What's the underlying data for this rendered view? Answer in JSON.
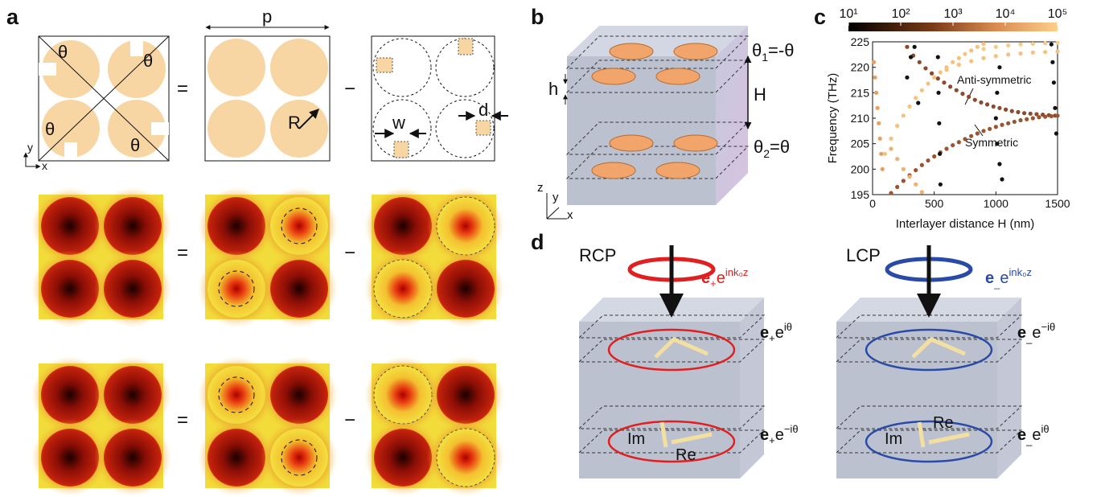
{
  "panel_a": {
    "label": "a",
    "top_row": {
      "theta_labels": [
        "θ",
        "θ",
        "θ",
        "θ"
      ],
      "axis_y": "y",
      "axis_x": "x",
      "equals": "=",
      "period": "p",
      "radius": "R",
      "minus": "−",
      "offset": "d",
      "width": "w"
    },
    "field_rows": [
      {
        "equals": "=",
        "minus": "−"
      },
      {
        "equals": "=",
        "minus": "−"
      }
    ]
  },
  "panel_b": {
    "label": "b",
    "thickness": "h",
    "theta1": {
      "symbol": "θ",
      "sub": "1",
      "rest": "=-θ"
    },
    "distance": "H",
    "theta2": {
      "symbol": "θ",
      "sub": "2",
      "rest": "=θ"
    },
    "axes": [
      "z",
      "y",
      "x"
    ]
  },
  "panel_c": {
    "label": "c",
    "type": "scatter",
    "xlabel": "Interlayer distance H (nm)",
    "ylabel": "Frequency (THz)",
    "xlim": [
      0,
      1500
    ],
    "xticks": [
      0,
      500,
      1000,
      1500
    ],
    "ylim": [
      195,
      225
    ],
    "yticks": [
      195,
      200,
      205,
      210,
      215,
      220,
      225
    ],
    "colorbar": {
      "log": true,
      "lim": [
        10,
        100000
      ],
      "ticks": [
        {
          "value": 10,
          "label": "10¹"
        },
        {
          "value": 100,
          "label": "10²"
        },
        {
          "value": 1000,
          "label": "10³"
        },
        {
          "value": 10000,
          "label": "10⁴"
        },
        {
          "value": 100000,
          "label": "10⁵"
        }
      ]
    },
    "annotations": [
      "Anti-symmetric",
      "Symmetric"
    ],
    "series": [
      {
        "color": "#8b4a2b",
        "x": [
          280,
          330,
          380,
          430,
          480,
          530,
          580,
          630,
          680,
          730,
          780,
          830,
          880,
          930,
          980,
          1030,
          1080,
          1130,
          1180,
          1230,
          1280,
          1330,
          1380,
          1430,
          1480
        ],
        "y": [
          224,
          222.3,
          221,
          219.8,
          218.8,
          217.8,
          217,
          216.2,
          215.5,
          214.8,
          214.2,
          213.6,
          213.1,
          212.7,
          212.3,
          212,
          211.7,
          211.4,
          211.2,
          211,
          210.9,
          210.8,
          210.7,
          210.6,
          210.5
        ]
      },
      {
        "color": "#9a5530",
        "x": [
          150,
          200,
          250,
          300,
          350,
          400,
          450,
          500,
          550,
          600,
          650,
          700,
          750,
          800,
          850,
          900,
          950,
          1000,
          1050,
          1100,
          1150,
          1200,
          1250,
          1300,
          1350,
          1400,
          1450,
          1500
        ],
        "y": [
          195.3,
          196.5,
          197.7,
          198.8,
          199.8,
          200.8,
          201.7,
          202.5,
          203.3,
          204,
          204.7,
          205.3,
          205.9,
          206.5,
          207,
          207.5,
          207.9,
          208.3,
          208.7,
          209,
          209.3,
          209.6,
          209.8,
          210,
          210.2,
          210.3,
          210.4,
          210.5
        ]
      },
      {
        "color": "#f5c27e",
        "x": [
          100,
          150,
          200,
          250,
          300,
          350,
          400,
          450,
          500,
          550,
          600,
          650,
          700,
          750,
          800,
          850,
          900
        ],
        "y": [
          203,
          206,
          208.5,
          210.5,
          212.3,
          214,
          215.5,
          216.8,
          218,
          219,
          220,
          221,
          221.8,
          222.6,
          223.3,
          224,
          224.6
        ]
      },
      {
        "color": "#f5c27e",
        "x": [
          600,
          700,
          800,
          900,
          1000,
          1100,
          1200,
          1300,
          1400,
          1500
        ],
        "y": [
          219.5,
          220.5,
          221.2,
          221.8,
          222.2,
          222.5,
          222.7,
          222.9,
          223,
          223.1
        ]
      },
      {
        "color": "#f7cb8a",
        "x": [
          900,
          1000,
          1100,
          1200,
          1300,
          1400,
          1500
        ],
        "y": [
          223.6,
          224,
          224.3,
          224.5,
          224.6,
          224.7,
          224.8
        ]
      },
      {
        "color": "#f0b070",
        "x": [
          150,
          200,
          250,
          300,
          350,
          400
        ],
        "y": [
          204,
          202,
          200,
          198.5,
          197,
          195.5
        ]
      },
      {
        "color": "#e8a060",
        "x": [
          10,
          20,
          30,
          40,
          50,
          60,
          70,
          80
        ],
        "y": [
          221,
          218,
          215,
          212,
          209,
          206,
          203,
          200
        ]
      },
      {
        "color": "#111111",
        "x": [
          550,
          545,
          540,
          535,
          530,
          1050,
          1030,
          1010,
          1000,
          1010,
          1030,
          1490,
          1480,
          1470,
          1460,
          1450,
          280,
          310,
          340,
          370
        ],
        "y": [
          197,
          203,
          209,
          215,
          222,
          198,
          201,
          205,
          210,
          215,
          220,
          207,
          212,
          217,
          221,
          224.5,
          218,
          222,
          224,
          213
        ]
      }
    ]
  },
  "panel_d": {
    "label": "d",
    "rcp": {
      "name": "RCP",
      "field": {
        "vec": "e",
        "sub": "+",
        "base": "e",
        "sup": "ink₀z"
      },
      "top": {
        "vec": "e",
        "sub": "+",
        "base": "e",
        "sup": "iθ"
      },
      "bottom": {
        "vec": "e",
        "sub": "+",
        "base": "e",
        "sup": "−iθ"
      },
      "im": "Im",
      "re": "Re"
    },
    "lcp": {
      "name": "LCP",
      "field": {
        "vec": "e",
        "sub": "_",
        "base": "e",
        "sup": "ink₀z"
      },
      "top": {
        "vec": "e",
        "sub": "_",
        "base": "e",
        "sup": "−iθ"
      },
      "bottom": {
        "vec": "e",
        "sub": "_",
        "base": "e",
        "sup": "iθ"
      },
      "im": "Im",
      "re": "Re"
    }
  }
}
